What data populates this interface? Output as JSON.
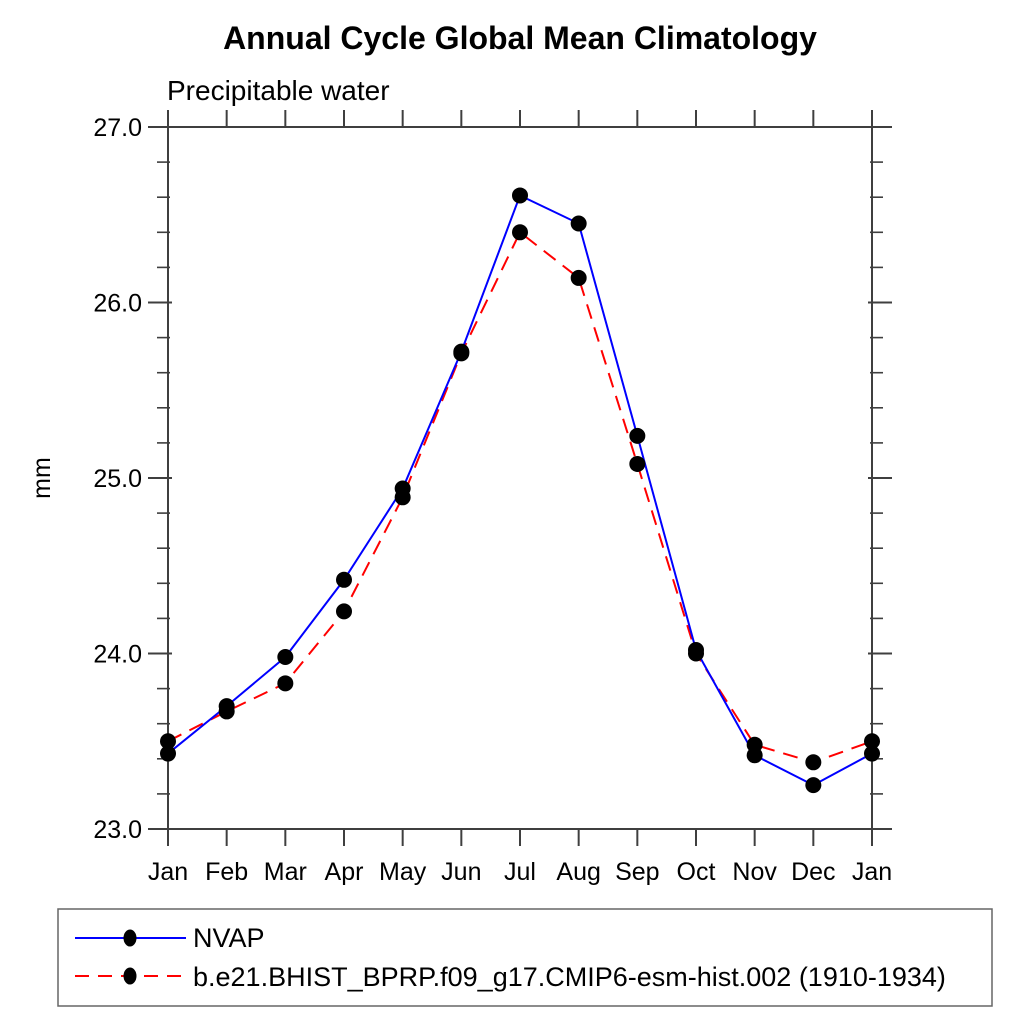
{
  "page": {
    "background": "#ffffff"
  },
  "chart_data": {
    "type": "line",
    "title": "Annual Cycle Global Mean Climatology",
    "subtitle": "Precipitable water",
    "ylabel": "mm",
    "xlabel": "",
    "categories": [
      "Jan",
      "Feb",
      "Mar",
      "Apr",
      "May",
      "Jun",
      "Jul",
      "Aug",
      "Sep",
      "Oct",
      "Nov",
      "Dec",
      "Jan"
    ],
    "ylim": [
      23.0,
      27.0
    ],
    "ytick_interval": 1.0,
    "yminor_interval": 0.2,
    "ytick_labels": [
      "23.0",
      "24.0",
      "25.0",
      "26.0",
      "27.0"
    ],
    "grid": false,
    "legend_position": "bottom-left-box",
    "axis_color": "#3f3f3f",
    "marker_color": "#000000",
    "series": [
      {
        "name": "NVAP",
        "color": "#0000ff",
        "line_style": "solid",
        "marker": "filled-circle",
        "values": [
          23.43,
          23.7,
          23.98,
          24.42,
          24.94,
          25.72,
          26.61,
          26.45,
          25.24,
          24.02,
          23.42,
          23.25,
          23.43
        ]
      },
      {
        "name": "b.e21.BHIST_BPRP.f09_g17.CMIP6-esm-hist.002 (1910-1934)",
        "color": "#ff0000",
        "line_style": "dashed",
        "marker": "filled-circle",
        "values": [
          23.5,
          23.67,
          23.83,
          24.24,
          24.89,
          25.71,
          26.4,
          26.14,
          25.08,
          24.0,
          23.48,
          23.38,
          23.5
        ]
      }
    ]
  }
}
